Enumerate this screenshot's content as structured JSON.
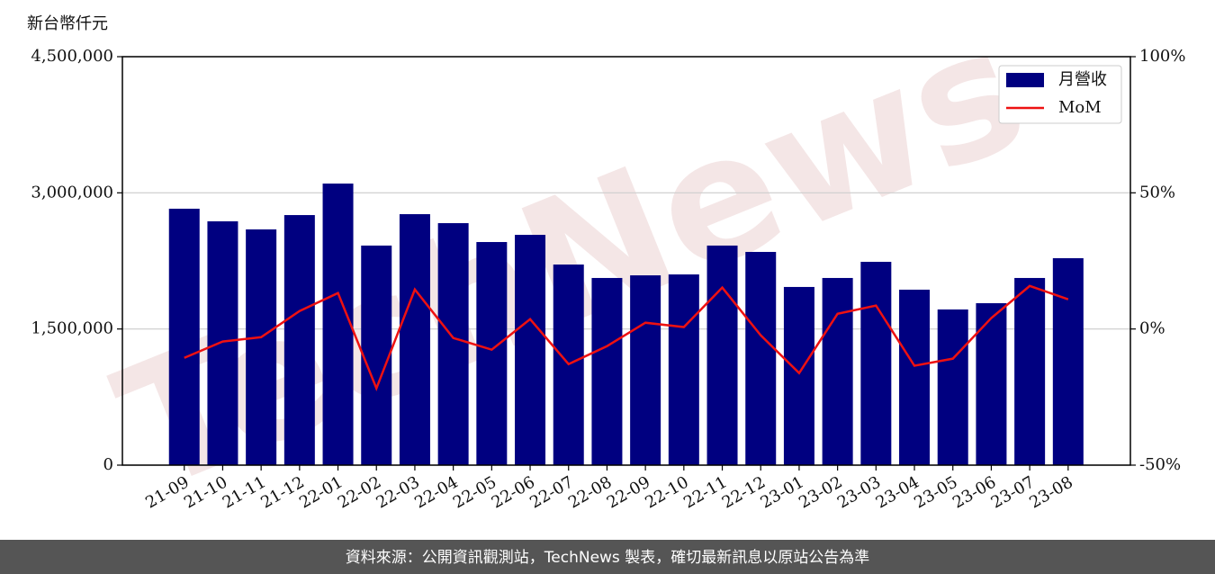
{
  "chart_data": {
    "type": "bar_line",
    "y_label": "新台幣仟元",
    "watermark": "TechNews",
    "source": "資料來源：公開資訊觀測站，TechNews 製表，確切最新訊息以原站公告為準",
    "categories": [
      "21-09",
      "21-10",
      "21-11",
      "21-12",
      "22-01",
      "22-02",
      "22-03",
      "22-04",
      "22-05",
      "22-06",
      "22-07",
      "22-08",
      "22-09",
      "22-10",
      "22-11",
      "22-12",
      "23-01",
      "23-02",
      "23-03",
      "23-04",
      "23-05",
      "23-06",
      "23-07",
      "23-08"
    ],
    "series": [
      {
        "name": "月營收",
        "type": "bar",
        "color": "#000080",
        "axis": "y",
        "values": [
          2825000,
          2686000,
          2597000,
          2755000,
          3102000,
          2419000,
          2765000,
          2666000,
          2458000,
          2537000,
          2210000,
          2062000,
          2091000,
          2101000,
          2419000,
          2349000,
          1963000,
          2062000,
          2240000,
          1933000,
          1715000,
          1784000,
          2062000,
          2280000
        ]
      },
      {
        "name": "MoM",
        "type": "line",
        "color": "#ee1111",
        "axis": "y2",
        "values": [
          -10.6,
          -4.6,
          -3.0,
          6.6,
          13.2,
          -21.8,
          14.5,
          -3.3,
          -7.6,
          3.6,
          -12.9,
          -6.3,
          2.3,
          0.7,
          15.2,
          -2.3,
          -16.2,
          5.6,
          8.6,
          -13.5,
          -10.9,
          4.0,
          15.8,
          10.9
        ]
      }
    ],
    "ylim": [
      0,
      4500000
    ],
    "yticks": [
      0,
      {
        "value": 1500000,
        "label": "1,500,000"
      },
      {
        "value": 3000000,
        "label": "3,000,000"
      },
      {
        "value": 4500000,
        "label": "4,500,000"
      }
    ],
    "y2lim": [
      -50,
      100
    ],
    "y2ticks": [
      {
        "value": -50,
        "label": "-50%"
      },
      {
        "value": 0,
        "label": "0%"
      },
      {
        "value": 50,
        "label": "50%"
      },
      {
        "value": 100,
        "label": "100%"
      }
    ],
    "grid": true,
    "legend": "upper right"
  }
}
